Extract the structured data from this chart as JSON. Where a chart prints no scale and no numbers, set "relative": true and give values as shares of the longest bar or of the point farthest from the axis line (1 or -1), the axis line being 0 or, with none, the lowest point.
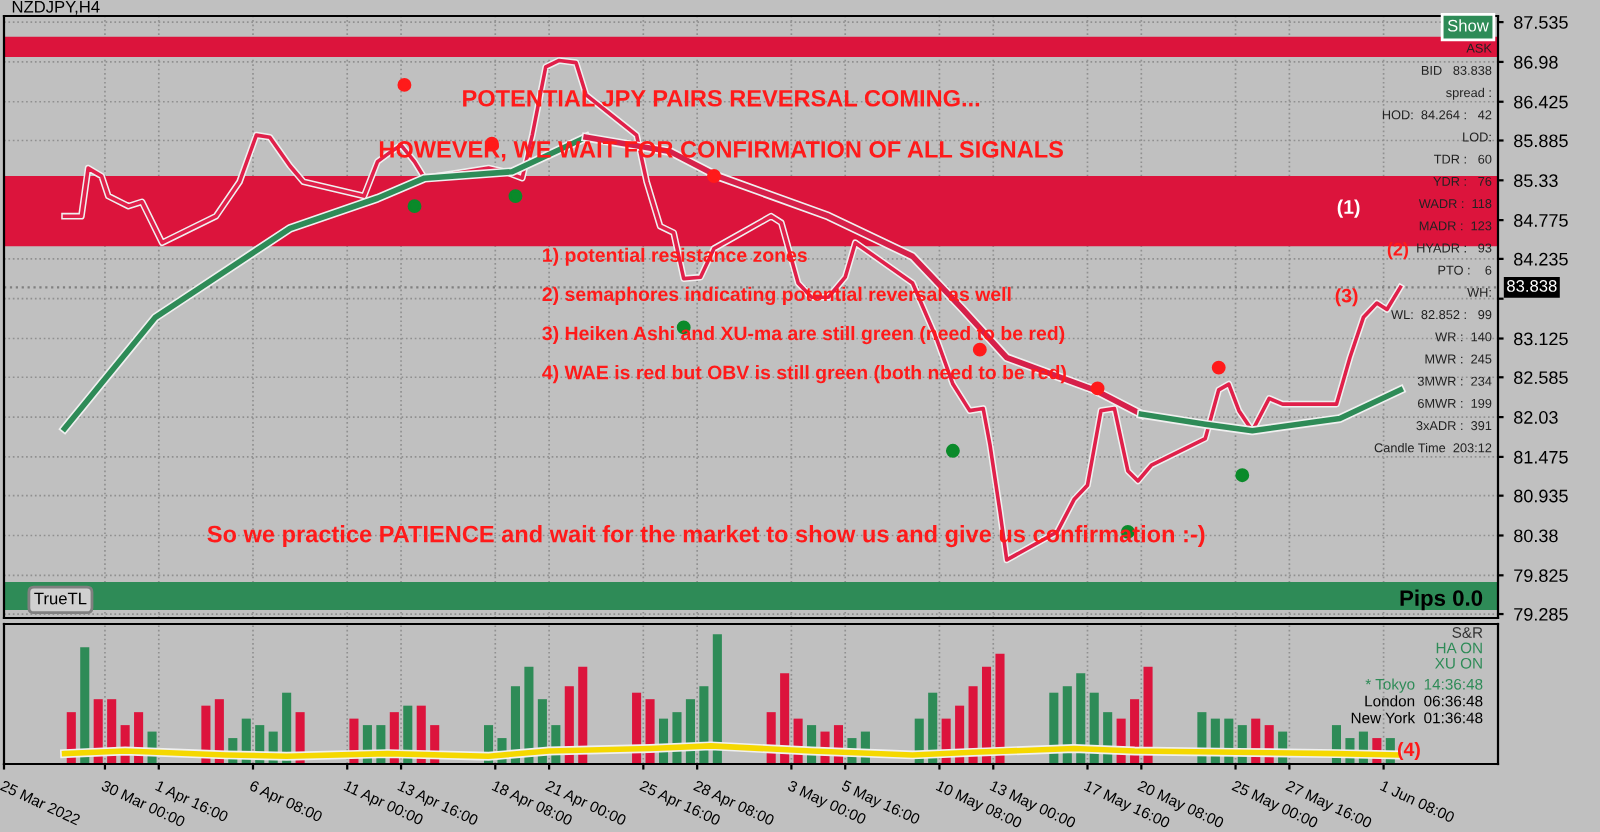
{
  "chart_data": [
    {
      "type": "line",
      "title": "NZDJPY,H4",
      "xlim": [
        "2022-03-25T00:00",
        "2022-06-07T00:00"
      ],
      "ylim": [
        79.23,
        87.62
      ],
      "xticks": [
        {
          "value": "2022-03-25",
          "label": null
        },
        {
          "value": "2022-03-30T00:00",
          "label": null
        },
        {
          "value": "2022-04-01T16:00",
          "label": null
        },
        {
          "value": "2022-04-06T08:00",
          "label": null
        },
        {
          "value": "2022-04-11T00:00",
          "label": null
        },
        {
          "value": "2022-04-13T16:00",
          "label": null
        },
        {
          "value": "2022-04-18T08:00",
          "label": null
        },
        {
          "value": "2022-04-21T00:00",
          "label": null
        },
        {
          "value": "2022-04-25T16:00",
          "label": null
        },
        {
          "value": "2022-04-28T08:00",
          "label": null
        },
        {
          "value": "2022-05-03T00:00",
          "label": null
        },
        {
          "value": "2022-05-05T16:00",
          "label": null
        },
        {
          "value": "2022-05-10T08:00",
          "label": null
        },
        {
          "value": "2022-05-13T00:00",
          "label": null
        },
        {
          "value": "2022-05-17T16:00",
          "label": null
        },
        {
          "value": "2022-05-20T08:00",
          "label": null
        },
        {
          "value": "2022-05-25T00:00",
          "label": null
        },
        {
          "value": "2022-05-27T16:00",
          "label": null
        },
        {
          "value": "2022-06-01T08:00",
          "label": null
        }
      ],
      "yticks": [
        87.535,
        86.98,
        86.425,
        85.885,
        85.33,
        84.775,
        84.235,
        {
          "value": 83.68,
          "label": null
        },
        83.125,
        82.585,
        82.03,
        81.475,
        80.935,
        80.38,
        79.825,
        79.285
      ],
      "tick_labels": "y",
      "grid": true,
      "series": [
        {
          "type": "line",
          "color": "#e0204a",
          "x": [
            "2022-03-28T00:00",
            "2022-03-28T20:00",
            "2022-03-29T04:00",
            "2022-03-29T20:00",
            "2022-03-30T04:00",
            "2022-03-31T04:00",
            "2022-03-31T20:00",
            "2022-04-01T20:00",
            "2022-04-04T12:00",
            "2022-04-05T16:00",
            "2022-04-06T12:00",
            "2022-04-07T04:00",
            "2022-04-08T04:00",
            "2022-04-08T20:00",
            "2022-04-11T20:00",
            "2022-04-12T12:00",
            "2022-04-13T04:00",
            "2022-04-13T16:00",
            "2022-04-14T08:00",
            "2022-04-14T20:00",
            "2022-04-18T00:00",
            "2022-04-18T20:00",
            "2022-04-19T16:00",
            "2022-04-20T04:00",
            "2022-04-20T20:00",
            "2022-04-21T12:00",
            "2022-04-22T08:00",
            "2022-04-22T20:00",
            "2022-04-25T08:00",
            "2022-04-25T20:00",
            "2022-04-26T12:00",
            "2022-04-27T04:00",
            "2022-04-27T16:00",
            "2022-04-28T12:00",
            "2022-04-29T04:00",
            "2022-05-02T00:00",
            "2022-05-02T12:00",
            "2022-05-03T08:00",
            "2022-05-04T00:00",
            "2022-05-04T20:00",
            "2022-05-05T16:00",
            "2022-05-06T04:00",
            "2022-05-09T00:00",
            "2022-05-10T04:00",
            "2022-05-11T00:00",
            "2022-05-11T20:00",
            "2022-05-12T12:00",
            "2022-05-12T20:00",
            "2022-05-13T08:00",
            "2022-05-13T16:00",
            "2022-05-16T04:00",
            "2022-05-17T00:00",
            "2022-05-17T16:00",
            "2022-05-18T08:00",
            "2022-05-19T00:00",
            "2022-05-19T16:00",
            "2022-05-20T04:00",
            "2022-05-20T20:00",
            "2022-05-23T12:00",
            "2022-05-24T04:00",
            "2022-05-24T16:00",
            "2022-05-25T04:00",
            "2022-05-25T20:00",
            "2022-05-26T16:00",
            "2022-05-27T08:00",
            "2022-05-30T00:00",
            "2022-05-30T16:00",
            "2022-05-31T08:00",
            "2022-06-01T00:00",
            "2022-06-01T12:00",
            "2022-06-02T04:00"
          ],
          "values": [
            84.83,
            84.83,
            85.5,
            85.39,
            85.11,
            84.97,
            85.03,
            84.46,
            84.83,
            85.31,
            85.96,
            85.93,
            85.53,
            85.31,
            85.11,
            85.59,
            85.73,
            85.82,
            85.59,
            85.36,
            85.5,
            85.45,
            85.36,
            85.96,
            86.91,
            87.0,
            86.97,
            86.52,
            85.96,
            85.31,
            84.69,
            84.6,
            83.96,
            83.98,
            84.38,
            84.83,
            84.74,
            83.9,
            83.7,
            83.7,
            83.98,
            84.46,
            83.9,
            83.14,
            82.49,
            82.12,
            82.15,
            81.65,
            80.71,
            80.04,
            80.43,
            80.88,
            81.08,
            82.12,
            82.15,
            81.28,
            81.14,
            81.36,
            81.73,
            82.41,
            82.49,
            82.12,
            81.84,
            82.29,
            82.21,
            82.21,
            82.86,
            83.42,
            83.62,
            83.53,
            83.84
          ]
        },
        {
          "type": "line",
          "color": "#2e8b57",
          "x": [
            "2022-03-28T00:00",
            "2022-04-01T12:00",
            "2022-04-08T04:00",
            "2022-04-12T12:00",
            "2022-04-14T20:00",
            "2022-04-19T04:00",
            "2022-04-22T20:00"
          ],
          "values": [
            81.87,
            83.42,
            84.66,
            85.08,
            85.36,
            85.45,
            85.93
          ]
        },
        {
          "type": "line",
          "color": "#d6204a",
          "x": [
            "2022-04-22T20:00",
            "2022-04-27T00:00",
            "2022-04-29T08:00",
            "2022-05-04T20:00",
            "2022-05-09T00:00",
            "2022-05-11T12:00",
            "2022-05-13T16:00",
            "2022-05-18T00:00",
            "2022-05-20T08:00"
          ],
          "values": [
            85.93,
            85.73,
            85.39,
            84.83,
            84.27,
            83.53,
            82.86,
            82.41,
            82.07
          ]
        },
        {
          "type": "line",
          "color": "#2e8b57",
          "x": [
            "2022-05-20T08:00",
            "2022-05-23T12:00",
            "2022-05-25T20:00",
            "2022-05-30T04:00",
            "2022-06-02T04:00"
          ],
          "values": [
            82.07,
            81.93,
            81.84,
            82.01,
            82.41
          ]
        },
        {
          "type": "scatter",
          "color": "#ff1a1a",
          "marker": "circle",
          "x": [
            "2022-04-13T20:00",
            "2022-04-18T04:00",
            "2022-04-29T04:00",
            "2022-05-12T08:00",
            "2022-05-18T04:00",
            "2022-05-24T04:00"
          ],
          "values": [
            86.66,
            85.84,
            85.39,
            82.97,
            82.43,
            82.72
          ]
        },
        {
          "type": "scatter",
          "color": "#0a8a2a",
          "marker": "circle",
          "x": [
            "2022-04-14T08:00",
            "2022-04-19T08:00",
            "2022-04-27T16:00",
            "2022-05-11T00:00",
            "2022-05-19T16:00",
            "2022-05-25T08:00"
          ],
          "values": [
            84.97,
            85.11,
            83.28,
            81.56,
            80.43,
            81.22
          ]
        }
      ],
      "bands": [
        {
          "axis": "y",
          "from": 87.05,
          "to": 87.33,
          "color": "#dc143c"
        },
        {
          "axis": "y",
          "from": 84.41,
          "to": 85.39,
          "color": "#dc143c"
        },
        {
          "axis": "y",
          "from": 79.34,
          "to": 79.73,
          "color": "#2e8b57"
        }
      ],
      "ref_lines": [
        {
          "axis": "y",
          "value": 83.838,
          "label": "83.838",
          "color": "#808080",
          "line_style": "dotted"
        }
      ],
      "annotations": [
        "POTENTIAL JPY PAIRS REVERSAL COMING...",
        "HOWEVER, WE WAIT FOR CONFIRMATION OF ALL SIGNALS",
        "1) potential resistance zones",
        "2) semaphores indicating potential reversal as well",
        "3) Heiken Ashi and XU-ma are still green (need to be red)",
        "4) WAE is red but OBV is still green (both need to be red)",
        "So we practice PATIENCE and wait for the market to show us and give us confirmation :-)",
        "TrueTL",
        "Pips 0.0",
        "(1)",
        "(2)",
        {
          "text": "(3)",
          "x": "2022-05-30T12:00",
          "y": 83.7
        }
      ]
    },
    {
      "type": "bar",
      "relative": true,
      "xlim": [
        "2022-03-25T00:00",
        "2022-06-07T00:00"
      ],
      "tick_labels": "x",
      "grid": "x",
      "xticks": [
        {
          "value": "2022-03-25",
          "label": "25 Mar 2022"
        },
        {
          "value": "2022-03-30T00:00",
          "label": "30 Mar 00:00"
        },
        {
          "value": "2022-04-01T16:00",
          "label": "1 Apr 16:00"
        },
        {
          "value": "2022-04-06T08:00",
          "label": "6 Apr 08:00"
        },
        {
          "value": "2022-04-11T00:00",
          "label": "11 Apr 00:00"
        },
        {
          "value": "2022-04-13T16:00",
          "label": "13 Apr 16:00"
        },
        {
          "value": "2022-04-18T08:00",
          "label": "18 Apr 08:00"
        },
        {
          "value": "2022-04-21T00:00",
          "label": "21 Apr 00:00"
        },
        {
          "value": "2022-04-25T16:00",
          "label": "25 Apr 16:00"
        },
        {
          "value": "2022-04-28T08:00",
          "label": "28 Apr 08:00"
        },
        {
          "value": "2022-05-03T00:00",
          "label": "3 May 00:00"
        },
        {
          "value": "2022-05-05T16:00",
          "label": "5 May 16:00"
        },
        {
          "value": "2022-05-10T08:00",
          "label": "10 May 08:00"
        },
        {
          "value": "2022-05-13T00:00",
          "label": "13 May 00:00"
        },
        {
          "value": "2022-05-17T16:00",
          "label": "17 May 16:00"
        },
        {
          "value": "2022-05-20T08:00",
          "label": "20 May 08:00"
        },
        {
          "value": "2022-05-25T00:00",
          "label": "25 May 00:00"
        },
        {
          "value": "2022-05-27T16:00",
          "label": "27 May 16:00"
        },
        {
          "value": "2022-06-01T08:00",
          "label": "1 Jun 08:00"
        }
      ],
      "series": [
        {
          "type": "bar",
          "x": [
            "2022-03-28T08:00",
            "2022-03-29T00:00",
            "2022-03-29T16:00",
            "2022-03-30T08:00",
            "2022-03-31T00:00",
            "2022-03-31T16:00",
            "2022-04-01T08:00",
            "2022-04-04T00:00",
            "2022-04-04T16:00",
            "2022-04-05T08:00",
            "2022-04-06T00:00",
            "2022-04-06T16:00",
            "2022-04-07T08:00",
            "2022-04-08T00:00",
            "2022-04-08T16:00",
            "2022-04-11T08:00",
            "2022-04-12T00:00",
            "2022-04-12T16:00",
            "2022-04-13T08:00",
            "2022-04-14T00:00",
            "2022-04-14T16:00",
            "2022-04-15T08:00",
            "2022-04-18T00:00",
            "2022-04-18T16:00",
            "2022-04-19T08:00",
            "2022-04-20T00:00",
            "2022-04-20T16:00",
            "2022-04-21T08:00",
            "2022-04-22T00:00",
            "2022-04-22T16:00",
            "2022-04-25T08:00",
            "2022-04-26T00:00",
            "2022-04-26T16:00",
            "2022-04-27T08:00",
            "2022-04-28T00:00",
            "2022-04-28T16:00",
            "2022-04-29T08:00",
            "2022-05-02T00:00",
            "2022-05-02T16:00",
            "2022-05-03T08:00",
            "2022-05-04T00:00",
            "2022-05-04T16:00",
            "2022-05-05T08:00",
            "2022-05-06T00:00",
            "2022-05-06T16:00",
            "2022-05-09T08:00",
            "2022-05-10T00:00",
            "2022-05-10T16:00",
            "2022-05-11T08:00",
            "2022-05-12T00:00",
            "2022-05-12T16:00",
            "2022-05-13T08:00",
            "2022-05-16T00:00",
            "2022-05-16T16:00",
            "2022-05-17T08:00",
            "2022-05-18T00:00",
            "2022-05-18T16:00",
            "2022-05-19T08:00",
            "2022-05-20T00:00",
            "2022-05-20T16:00",
            "2022-05-23T08:00",
            "2022-05-24T00:00",
            "2022-05-24T16:00",
            "2022-05-25T08:00",
            "2022-05-26T00:00",
            "2022-05-26T16:00",
            "2022-05-27T08:00",
            "2022-05-30T00:00",
            "2022-05-30T16:00",
            "2022-05-31T08:00",
            "2022-06-01T00:00",
            "2022-06-01T16:00"
          ],
          "values": [
            0.4,
            0.9,
            0.5,
            0.5,
            0.3,
            0.4,
            0.25,
            0.45,
            0.5,
            0.2,
            0.35,
            0.3,
            0.25,
            0.55,
            0.4,
            0.35,
            0.3,
            0.3,
            0.4,
            0.45,
            0.45,
            0.3,
            0.3,
            0.2,
            0.6,
            0.75,
            0.5,
            0.3,
            0.6,
            0.75,
            0.55,
            0.5,
            0.35,
            0.4,
            0.5,
            0.6,
            1.0,
            0.4,
            0.7,
            0.35,
            0.3,
            0.25,
            0.3,
            0.2,
            0.25,
            0.35,
            0.55,
            0.35,
            0.45,
            0.6,
            0.75,
            0.85,
            0.55,
            0.6,
            0.7,
            0.55,
            0.4,
            0.35,
            0.5,
            0.75,
            0.4,
            0.35,
            0.35,
            0.3,
            0.35,
            0.3,
            0.25,
            0.3,
            0.2,
            0.25,
            0.2,
            0.2
          ],
          "colors": [
            "#dc143c",
            "#2e8b57",
            "#dc143c",
            "#dc143c",
            "#dc143c",
            "#dc143c",
            "#2e8b57",
            "#dc143c",
            "#dc143c",
            "#2e8b57",
            "#2e8b57",
            "#2e8b57",
            "#2e8b57",
            "#2e8b57",
            "#dc143c",
            "#dc143c",
            "#2e8b57",
            "#2e8b57",
            "#dc143c",
            "#2e8b57",
            "#dc143c",
            "#dc143c",
            "#2e8b57",
            "#2e8b57",
            "#2e8b57",
            "#2e8b57",
            "#2e8b57",
            "#2e8b57",
            "#dc143c",
            "#dc143c",
            "#dc143c",
            "#dc143c",
            "#2e8b57",
            "#2e8b57",
            "#2e8b57",
            "#2e8b57",
            "#2e8b57",
            "#dc143c",
            "#dc143c",
            "#dc143c",
            "#2e8b57",
            "#dc143c",
            "#dc143c",
            "#2e8b57",
            "#2e8b57",
            "#2e8b57",
            "#2e8b57",
            "#dc143c",
            "#dc143c",
            "#dc143c",
            "#dc143c",
            "#dc143c",
            "#2e8b57",
            "#2e8b57",
            "#2e8b57",
            "#2e8b57",
            "#2e8b57",
            "#dc143c",
            "#dc143c",
            "#dc143c",
            "#2e8b57",
            "#2e8b57",
            "#2e8b57",
            "#2e8b57",
            "#dc143c",
            "#dc143c",
            "#2e8b57",
            "#2e8b57",
            "#2e8b57",
            "#2e8b57",
            "#dc143c",
            "#2e8b57"
          ]
        },
        {
          "type": "line",
          "color": "#f5d800",
          "x": [
            "2022-03-28T00:00",
            "2022-03-31T00:00",
            "2022-04-05T00:00",
            "2022-04-08T00:00",
            "2022-04-13T00:00",
            "2022-04-18T00:00",
            "2022-04-21T00:00",
            "2022-04-26T00:00",
            "2022-04-29T00:00",
            "2022-05-04T00:00",
            "2022-05-09T00:00",
            "2022-05-12T00:00",
            "2022-05-17T00:00",
            "2022-05-20T00:00",
            "2022-05-25T00:00",
            "2022-05-30T00:00",
            "2022-06-02T00:00"
          ],
          "values": [
            0.08,
            0.1,
            0.07,
            0.06,
            0.08,
            0.06,
            0.1,
            0.12,
            0.14,
            0.1,
            0.07,
            0.09,
            0.12,
            0.1,
            0.09,
            0.08,
            0.07
          ]
        }
      ],
      "annotations": [
        "S&R",
        "HA ON",
        "XU ON",
        "* Tokyo  14:36:48",
        "London  06:36:48",
        "New York  01:36:48",
        {
          "text": "(4)",
          "x": "2022-06-02T00:00",
          "y": 0.1
        }
      ]
    },
    {
      "type": "other",
      "annotations": [
        "Show",
        "ASK",
        "BID   83.838",
        "spread :",
        "HOD:  84.264 :   42",
        "LOD:",
        "TDR :   60",
        "YDR :   76",
        "WADR :  118",
        "MADR :  123",
        "HYADR :   93",
        "PTO :    6",
        "WH:",
        "WL:  82.852 :   99",
        "WR :  140",
        "MWR :  245",
        "3MWR :  234",
        "6MWR :  199",
        "3xADR :  391",
        "Candle Time  203:12"
      ]
    }
  ]
}
